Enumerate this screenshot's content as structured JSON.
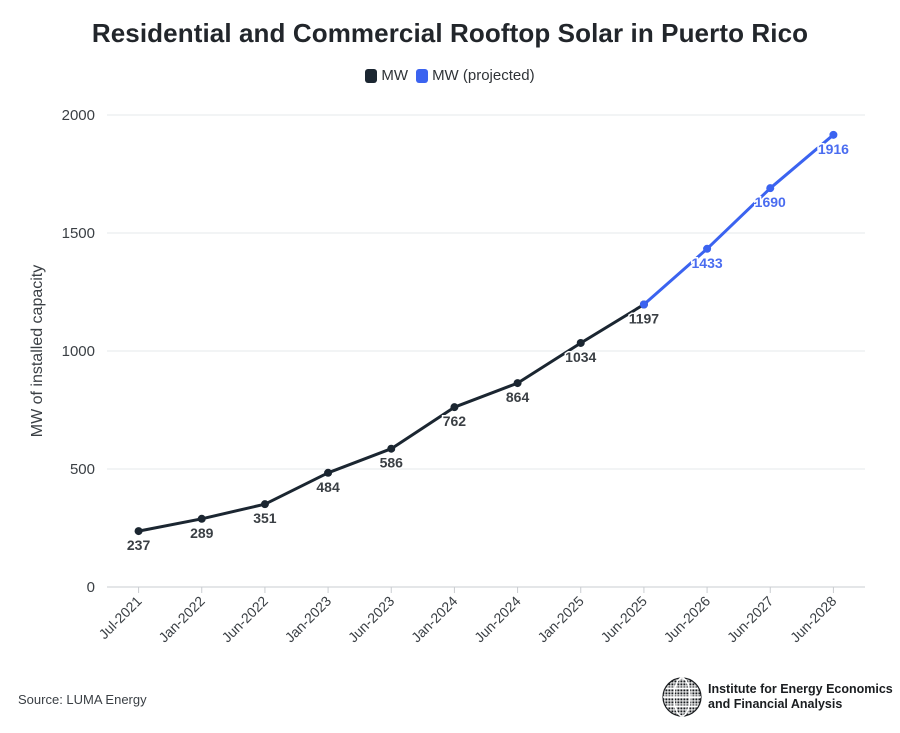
{
  "chart_data": {
    "type": "line",
    "title": "Residential and Commercial Rooftop Solar in Puerto Rico",
    "ylabel": "MW of installed capacity",
    "xlabel": "",
    "ylim": [
      0,
      2000
    ],
    "yticks": [
      0,
      500,
      1000,
      1500,
      2000
    ],
    "grid": true,
    "legend_position": "top",
    "categories": [
      "Jul-2021",
      "Jan-2022",
      "Jun-2022",
      "Jan-2023",
      "Jun-2023",
      "Jan-2024",
      "Jun-2024",
      "Jan-2025",
      "Jun-2025",
      "Jun-2026",
      "Jun-2027",
      "Jun-2028"
    ],
    "series": [
      {
        "name": "MW",
        "color": "#1b2631",
        "x": [
          "Jul-2021",
          "Jan-2022",
          "Jun-2022",
          "Jan-2023",
          "Jun-2023",
          "Jan-2024",
          "Jun-2024",
          "Jan-2025",
          "Jun-2025"
        ],
        "values": [
          237,
          289,
          351,
          484,
          586,
          762,
          864,
          1034,
          1197
        ],
        "labels": [
          "237",
          "289",
          "351",
          "484",
          "586",
          "762",
          "864",
          "1034",
          "1197"
        ]
      },
      {
        "name": "MW (projected)",
        "color": "#3b63f0",
        "x": [
          "Jun-2025",
          "Jun-2026",
          "Jun-2027",
          "Jun-2028"
        ],
        "values": [
          1197,
          1433,
          1690,
          1916
        ],
        "labels": [
          "",
          "1433",
          "1690",
          "1916"
        ]
      }
    ]
  },
  "footer": {
    "source": "Source: LUMA Energy",
    "org_line1": "Institute for Energy Economics",
    "org_line2": "and Financial Analysis"
  }
}
